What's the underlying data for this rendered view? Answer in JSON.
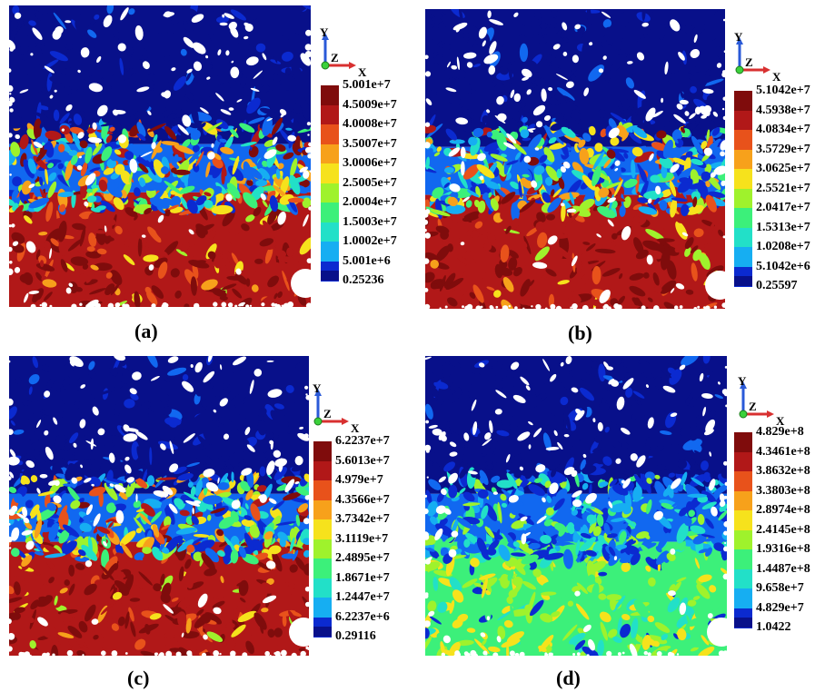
{
  "colors": {
    "scale": [
      "#08108a",
      "#0b2ad0",
      "#1168f0",
      "#16aef2",
      "#22e0c8",
      "#3cf07a",
      "#9ff22c",
      "#f6e21c",
      "#f7a11b",
      "#e8521b",
      "#b11818",
      "#7f0c0c"
    ],
    "background": "#ffffff"
  },
  "axes": {
    "y": "Y",
    "z": "Z",
    "x": "X"
  },
  "panels": [
    {
      "id": "a",
      "caption": "(a)",
      "variant": "red",
      "legend_labels": [
        "5.001e+7",
        "4.5009e+7",
        "4.0008e+7",
        "3.5007e+7",
        "3.0006e+7",
        "2.5005e+7",
        "2.0004e+7",
        "1.5003e+7",
        "1.0002e+7",
        "5.001e+6",
        "0.25236"
      ]
    },
    {
      "id": "b",
      "caption": "(b)",
      "variant": "red",
      "legend_labels": [
        "5.1042e+7",
        "4.5938e+7",
        "4.0834e+7",
        "3.5729e+7",
        "3.0625e+7",
        "2.5521e+7",
        "2.0417e+7",
        "1.5313e+7",
        "1.0208e+7",
        "5.1042e+6",
        "0.25597"
      ]
    },
    {
      "id": "c",
      "caption": "(c)",
      "variant": "red",
      "legend_labels": [
        "6.2237e+7",
        "5.6013e+7",
        "4.979e+7",
        "4.3566e+7",
        "3.7342e+7",
        "3.1119e+7",
        "2.4895e+7",
        "1.8671e+7",
        "1.2447e+7",
        "6.2237e+6",
        "0.29116"
      ]
    },
    {
      "id": "d",
      "caption": "(d)",
      "variant": "green",
      "legend_labels": [
        "4.829e+8",
        "4.3461e+8",
        "3.8632e+8",
        "3.3803e+8",
        "2.8974e+8",
        "2.4145e+8",
        "1.9316e+8",
        "1.4487e+8",
        "9.658e+7",
        "4.829e+7",
        "1.0422"
      ]
    }
  ]
}
